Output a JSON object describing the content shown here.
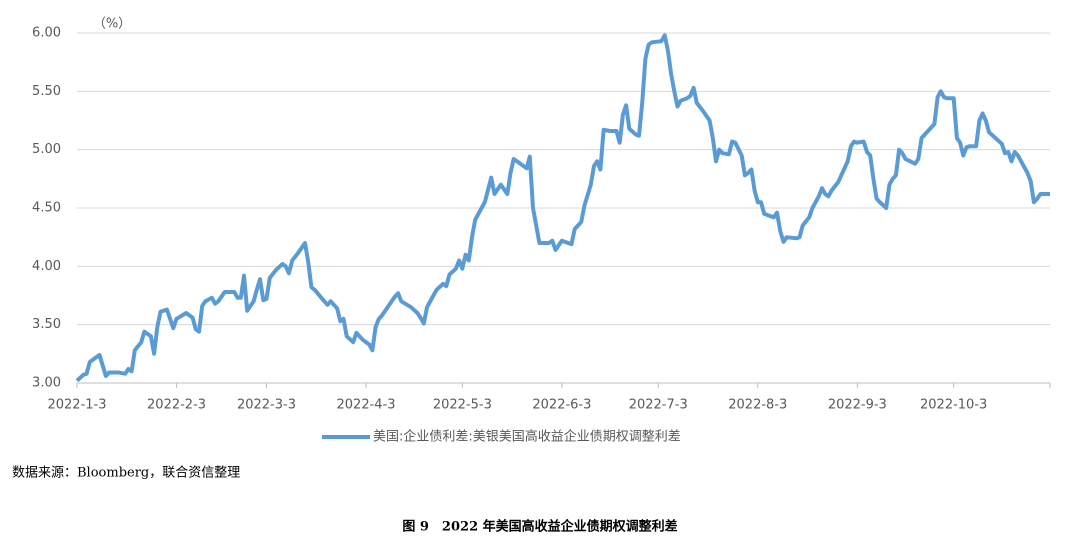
{
  "chart_data": {
    "type": "line",
    "unit_label": "（%）",
    "x": [
      0,
      2,
      3,
      4,
      6,
      7,
      8,
      9,
      10,
      13,
      15,
      16,
      17,
      18,
      20,
      21,
      23,
      24,
      25,
      26,
      28,
      30,
      31,
      34,
      36,
      37,
      38,
      39,
      40,
      42,
      43,
      44,
      46,
      49,
      50,
      51,
      52,
      53,
      55,
      56,
      57,
      58,
      59,
      60,
      62,
      64,
      65,
      66,
      67,
      69,
      71,
      72,
      73,
      74,
      77,
      78,
      79,
      81,
      82,
      83,
      84,
      86,
      87,
      89,
      91,
      92,
      93,
      94,
      95,
      98,
      99,
      100,
      101,
      104,
      106,
      107,
      108,
      109,
      111,
      112,
      114,
      115,
      116,
      118,
      119,
      120,
      121,
      122,
      123,
      124,
      126,
      127,
      129,
      130,
      131,
      132,
      134,
      135,
      136,
      137,
      140,
      141,
      142,
      144,
      147,
      148,
      149,
      150,
      151,
      153,
      154,
      155,
      157,
      158,
      160,
      161,
      162,
      163,
      164,
      166,
      168,
      169,
      170,
      171,
      172,
      174,
      175,
      176,
      177,
      178,
      179,
      182,
      183,
      184,
      185,
      186,
      187,
      188,
      190,
      191,
      192,
      193,
      195,
      197,
      198,
      199,
      200,
      201,
      203,
      204,
      205,
      207,
      208,
      209,
      210,
      211,
      212,
      213,
      214,
      216,
      217,
      218,
      219,
      220,
      221,
      224,
      225,
      226,
      228,
      229,
      231,
      232,
      233,
      234,
      235,
      237,
      238,
      240,
      241,
      242,
      243,
      245,
      246,
      247,
      248,
      249,
      250,
      252,
      253,
      254,
      255,
      256,
      257,
      258,
      261,
      262,
      263,
      264,
      265,
      267,
      268,
      269,
      270,
      271,
      273,
      274,
      275,
      276,
      277,
      278,
      280,
      281,
      282,
      283,
      284,
      286,
      288,
      289,
      290,
      291,
      292,
      293,
      294,
      296,
      297,
      298,
      299,
      300,
      301,
      303
    ],
    "series": [
      {
        "name": "美国:企业债利差:美银美国高收益企业债期权调整利差",
        "color": "#5b9bd5",
        "values": [
          3.02,
          3.07,
          3.08,
          3.18,
          3.22,
          3.24,
          3.15,
          3.06,
          3.09,
          3.09,
          3.08,
          3.12,
          3.1,
          3.28,
          3.35,
          3.44,
          3.4,
          3.25,
          3.48,
          3.61,
          3.63,
          3.47,
          3.55,
          3.6,
          3.56,
          3.46,
          3.44,
          3.66,
          3.7,
          3.73,
          3.68,
          3.7,
          3.78,
          3.78,
          3.73,
          3.73,
          3.92,
          3.62,
          3.7,
          3.8,
          3.89,
          3.71,
          3.72,
          3.9,
          3.97,
          4.02,
          4.0,
          3.94,
          4.05,
          4.12,
          4.2,
          4.04,
          3.82,
          3.8,
          3.7,
          3.67,
          3.7,
          3.64,
          3.53,
          3.55,
          3.4,
          3.35,
          3.43,
          3.37,
          3.33,
          3.28,
          3.48,
          3.55,
          3.58,
          3.7,
          3.74,
          3.77,
          3.7,
          3.65,
          3.6,
          3.56,
          3.51,
          3.65,
          3.75,
          3.8,
          3.85,
          3.83,
          3.93,
          3.98,
          4.05,
          3.98,
          4.1,
          4.05,
          4.25,
          4.4,
          4.5,
          4.55,
          4.76,
          4.62,
          4.66,
          4.7,
          4.62,
          4.8,
          4.92,
          4.9,
          4.84,
          4.94,
          4.5,
          4.2,
          4.2,
          4.22,
          4.14,
          4.18,
          4.22,
          4.2,
          4.19,
          4.32,
          4.38,
          4.52,
          4.7,
          4.86,
          4.9,
          4.83,
          5.17,
          5.16,
          5.16,
          5.06,
          5.3,
          5.38,
          5.18,
          5.13,
          5.12,
          5.4,
          5.78,
          5.9,
          5.92,
          5.93,
          5.98,
          5.85,
          5.65,
          5.5,
          5.37,
          5.42,
          5.44,
          5.46,
          5.53,
          5.4,
          5.33,
          5.25,
          5.1,
          4.9,
          5.0,
          4.97,
          4.96,
          5.07,
          5.06,
          4.95,
          4.78,
          4.8,
          4.83,
          4.65,
          4.55,
          4.55,
          4.45,
          4.43,
          4.42,
          4.46,
          4.3,
          4.21,
          4.25,
          4.24,
          4.25,
          4.35,
          4.42,
          4.5,
          4.6,
          4.67,
          4.62,
          4.6,
          4.65,
          4.72,
          4.78,
          4.9,
          5.03,
          5.07,
          5.06,
          5.07,
          4.98,
          4.95,
          4.75,
          4.58,
          4.55,
          4.5,
          4.7,
          4.75,
          4.78,
          5.0,
          4.97,
          4.92,
          4.88,
          4.92,
          5.1,
          5.13,
          5.16,
          5.22,
          5.45,
          5.5,
          5.45,
          5.44,
          5.44,
          5.1,
          5.06,
          4.95,
          5.02,
          5.03,
          5.03,
          5.25,
          5.31,
          5.25,
          5.15,
          5.1,
          5.05,
          4.97,
          4.98,
          4.9,
          4.98,
          4.95,
          4.9,
          4.8,
          4.73,
          4.55,
          4.58,
          4.62,
          4.62,
          4.62
        ]
      }
    ],
    "xlim": [
      0,
      303
    ],
    "xticks": [
      {
        "value": 0,
        "label": "2022-1-3"
      },
      {
        "value": 31,
        "label": "2022-2-3"
      },
      {
        "value": 59,
        "label": "2022-3-3"
      },
      {
        "value": 90,
        "label": "2022-4-3"
      },
      {
        "value": 120,
        "label": "2022-5-3"
      },
      {
        "value": 151,
        "label": "2022-6-3"
      },
      {
        "value": 181,
        "label": "2022-7-3"
      },
      {
        "value": 212,
        "label": "2022-8-3"
      },
      {
        "value": 243,
        "label": "2022-9-3"
      },
      {
        "value": 273,
        "label": "2022-10-3"
      }
    ],
    "ylim": [
      3,
      6
    ],
    "yticks": [
      {
        "value": 3,
        "label": "3.00"
      },
      {
        "value": 3.5,
        "label": "3.50"
      },
      {
        "value": 4,
        "label": "4.00"
      },
      {
        "value": 4.5,
        "label": "4.50"
      },
      {
        "value": 5,
        "label": "5.00"
      },
      {
        "value": 5.5,
        "label": "5.50"
      },
      {
        "value": 6,
        "label": "6.00"
      }
    ],
    "grid": true,
    "legend": "bottom"
  },
  "source": "数据来源：Bloomberg，联合资信整理",
  "caption": "图 9　2022 年美国高收益企业债期权调整利差"
}
